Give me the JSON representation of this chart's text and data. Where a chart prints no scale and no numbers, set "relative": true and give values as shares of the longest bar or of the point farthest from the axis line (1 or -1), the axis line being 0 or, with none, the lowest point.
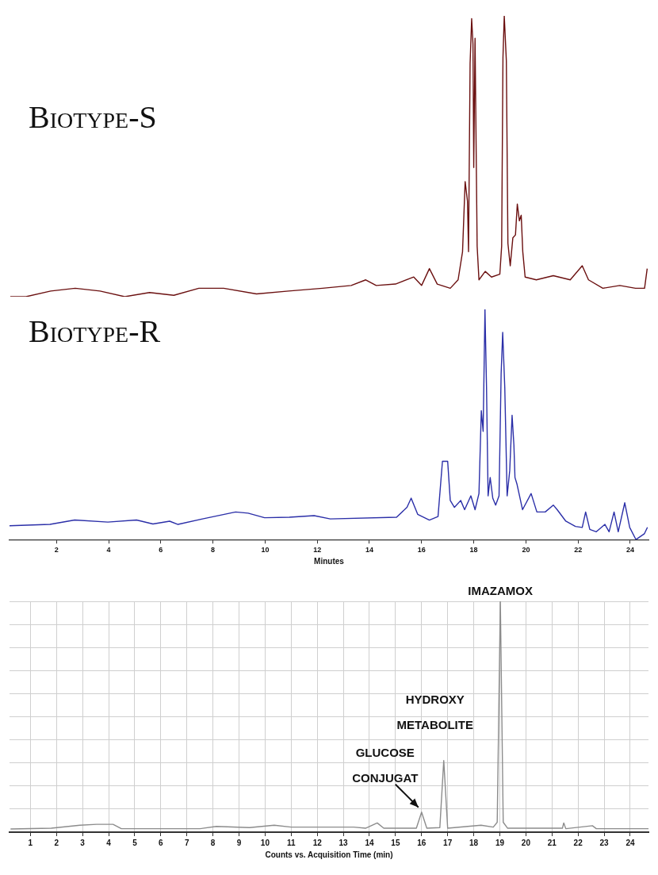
{
  "chart_data": [
    {
      "type": "line",
      "title": "Biotype-S",
      "relative": true,
      "marker": "none",
      "tick_labels": false,
      "xlim": [
        0.2,
        24.7
      ],
      "x": [
        0.23,
        0.83,
        1.78,
        2.72,
        3.67,
        4.62,
        5.57,
        6.5,
        7.46,
        8.41,
        9.67,
        10.9,
        12.2,
        13.3,
        13.86,
        14.26,
        15.0,
        15.7,
        16.0,
        16.3,
        16.6,
        17.1,
        17.4,
        17.57,
        17.67,
        17.76,
        17.8,
        17.86,
        17.92,
        17.97,
        18.0,
        18.05,
        18.13,
        18.2,
        18.44,
        18.68,
        19.0,
        19.07,
        19.12,
        19.17,
        19.25,
        19.31,
        19.4,
        19.5,
        19.6,
        19.67,
        19.75,
        19.82,
        19.88,
        19.97,
        20.4,
        21.05,
        21.7,
        22.16,
        22.4,
        22.95,
        23.6,
        24.2,
        24.55,
        24.65
      ],
      "series": [
        {
          "color": "#6b1010",
          "values": [
            0,
            0,
            0.02,
            0.03,
            0.02,
            0,
            0.015,
            0.005,
            0.03,
            0.03,
            0.01,
            0.02,
            0.03,
            0.04,
            0.06,
            0.04,
            0.045,
            0.07,
            0.04,
            0.1,
            0.045,
            0.03,
            0.06,
            0.16,
            0.41,
            0.34,
            0.16,
            0.83,
            0.99,
            0.9,
            0.46,
            0.92,
            0.18,
            0.06,
            0.09,
            0.07,
            0.08,
            0.18,
            0.85,
            1,
            0.84,
            0.19,
            0.11,
            0.21,
            0.22,
            0.33,
            0.27,
            0.29,
            0.16,
            0.07,
            0.06,
            0.075,
            0.06,
            0.11,
            0.06,
            0.03,
            0.04,
            0.03,
            0.03,
            0.1
          ]
        }
      ]
    },
    {
      "type": "line",
      "title": "Biotype-R",
      "relative": true,
      "marker": "none",
      "tick_labels": "x",
      "xlim": [
        0.2,
        24.7
      ],
      "xticks": [
        2,
        4,
        6,
        8,
        10,
        12,
        14,
        16,
        18,
        20,
        22,
        24
      ],
      "xlabel": "Minutes",
      "x": [
        0.2,
        1.75,
        2.7,
        3.97,
        5.07,
        5.7,
        6.34,
        6.66,
        7.6,
        8.87,
        9.35,
        9.98,
        10.93,
        11.88,
        12.5,
        15.04,
        15.44,
        15.6,
        15.85,
        16.3,
        16.63,
        16.8,
        17.0,
        17.1,
        17.26,
        17.5,
        17.65,
        17.89,
        18.05,
        18.2,
        18.29,
        18.36,
        18.43,
        18.49,
        18.55,
        18.63,
        18.73,
        18.84,
        18.97,
        19.05,
        19.11,
        19.19,
        19.28,
        19.38,
        19.47,
        19.54,
        19.58,
        19.66,
        19.87,
        20.2,
        20.42,
        20.74,
        21.05,
        21.2,
        21.53,
        21.9,
        22.16,
        22.29,
        22.45,
        22.7,
        23.03,
        23.19,
        23.38,
        23.54,
        23.79,
        23.98,
        24.22,
        24.54,
        24.66
      ],
      "series": [
        {
          "color": "#2b2fa8",
          "values": [
            0.06,
            0.066,
            0.085,
            0.076,
            0.085,
            0.068,
            0.08,
            0.066,
            0.09,
            0.12,
            0.115,
            0.095,
            0.097,
            0.104,
            0.09,
            0.097,
            0.14,
            0.18,
            0.11,
            0.085,
            0.1,
            0.34,
            0.34,
            0.17,
            0.14,
            0.17,
            0.13,
            0.19,
            0.13,
            0.2,
            0.56,
            0.47,
            1,
            0.66,
            0.19,
            0.27,
            0.18,
            0.15,
            0.19,
            0.72,
            0.9,
            0.66,
            0.19,
            0.3,
            0.54,
            0.41,
            0.27,
            0.24,
            0.13,
            0.2,
            0.12,
            0.12,
            0.15,
            0.13,
            0.08,
            0.057,
            0.053,
            0.12,
            0.044,
            0.034,
            0.066,
            0.034,
            0.12,
            0.034,
            0.16,
            0.053,
            0,
            0.025,
            0.053
          ]
        }
      ]
    },
    {
      "type": "line",
      "relative": true,
      "marker": "none",
      "tick_labels": "x",
      "grid": true,
      "xlim": [
        0.2,
        24.7
      ],
      "xticks": [
        1,
        2,
        3,
        4,
        5,
        6,
        7,
        8,
        9,
        10,
        11,
        12,
        13,
        14,
        15,
        16,
        17,
        18,
        19,
        20,
        21,
        22,
        23,
        24
      ],
      "xlabel": "Counts vs. Acquisition Time (min)",
      "annotations": [
        {
          "text": "IMAZAMOX",
          "x": 19.02,
          "y": 1
        },
        {
          "text": "HYDROXY METABOLITE",
          "x": 16.85,
          "y": 0.31
        },
        {
          "text": "GLUCOSE CONJUGAT",
          "x": 16.0,
          "y": 0.087
        }
      ],
      "x": [
        0.24,
        1.8,
        2.9,
        3.54,
        4.17,
        4.49,
        7.5,
        8.13,
        9.4,
        10.35,
        11.0,
        13.4,
        13.85,
        14.3,
        14.55,
        15.8,
        16.0,
        16.2,
        16.7,
        16.85,
        17.0,
        18.28,
        18.75,
        18.9,
        19.02,
        19.13,
        19.3,
        21.4,
        21.45,
        21.53,
        22.55,
        22.7,
        24.7
      ],
      "series": [
        {
          "color": "#8c8c8c",
          "values": [
            0.014,
            0.017,
            0.03,
            0.034,
            0.034,
            0.015,
            0.015,
            0.025,
            0.02,
            0.03,
            0.022,
            0.022,
            0.017,
            0.04,
            0.017,
            0.017,
            0.087,
            0.017,
            0.02,
            0.31,
            0.017,
            0.03,
            0.022,
            0.043,
            1,
            0.043,
            0.017,
            0.017,
            0.04,
            0.015,
            0.028,
            0.015,
            0.015
          ]
        }
      ]
    }
  ]
}
